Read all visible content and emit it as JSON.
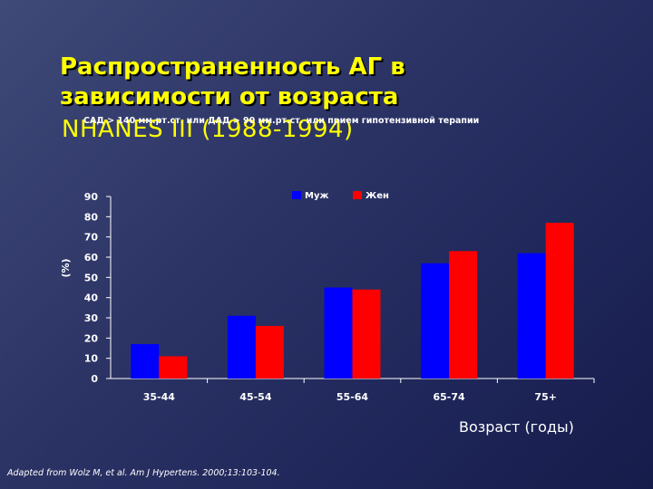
{
  "slide": {
    "title_line1": "Распространенность АГ в",
    "title_line2": "зависимости от возраста",
    "subtitle": "NHANES III (1988-1994)",
    "criteria": "САД > 140 мм.рт.ст. или ДАД > 90 мм.рт.ст. или прием гипотензивной терапии",
    "citation": "Adapted from Wolz M, et al. Am J Hypertens. 2000;13:103-104."
  },
  "colors": {
    "men": "#0000ff",
    "women": "#ff0000",
    "axis": "#ffffff",
    "title": "#ffff00"
  },
  "chart_data": {
    "type": "bar",
    "categories": [
      "35-44",
      "45-54",
      "55-64",
      "65-74",
      "75+"
    ],
    "series": [
      {
        "name": "Муж",
        "values": [
          17,
          31,
          45,
          57,
          62
        ]
      },
      {
        "name": "Жен",
        "values": [
          11,
          26,
          44,
          63,
          77
        ]
      }
    ],
    "ylim": [
      0,
      90
    ],
    "yticks": [
      0,
      10,
      20,
      30,
      40,
      50,
      60,
      70,
      80,
      90
    ],
    "ylabel": "(%)",
    "xlabel": "Возраст (годы)",
    "legend_position": "top-center",
    "grid": false
  }
}
